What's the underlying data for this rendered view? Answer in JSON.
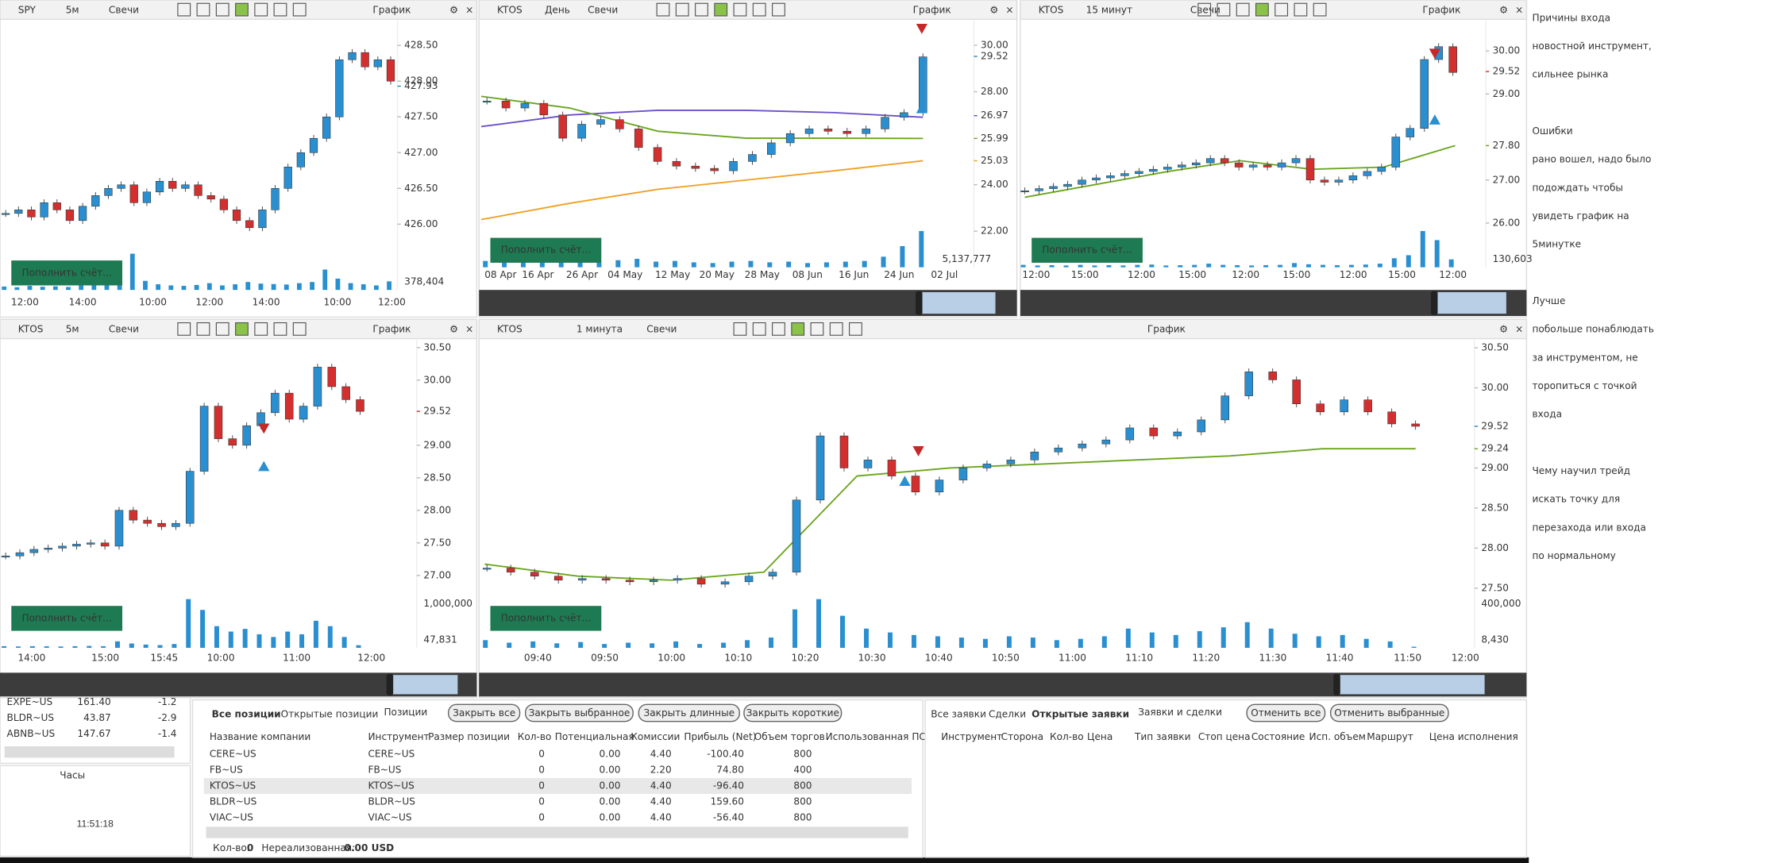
{
  "charts": [
    {
      "symbol": "SPY",
      "interval": "5м",
      "style": "Свечи",
      "title": "График",
      "button": "Пополнить счёт...",
      "ylim": [
        425.65,
        428.85
      ],
      "yticks": [
        {
          "value": 426,
          "label": "426.00"
        },
        {
          "value": 426.5,
          "label": "426.50"
        },
        {
          "value": 427,
          "label": "427.00"
        },
        {
          "value": 427.5,
          "label": "427.50"
        },
        {
          "value": 428,
          "label": "428.00"
        },
        {
          "value": 428.5,
          "label": "428.50"
        }
      ],
      "price_labels": [
        {
          "value": 427.93,
          "label": "427.93",
          "color": "#1e88c8"
        }
      ],
      "volume_labels": [
        "378,404"
      ],
      "xticks": [
        "12:00",
        "14:00",
        "10:00",
        "12:00",
        "14:00",
        "10:00",
        "12:00"
      ],
      "closes": [
        426.15,
        426.2,
        426.1,
        426.3,
        426.2,
        426.05,
        426.25,
        426.4,
        426.5,
        426.55,
        426.3,
        426.45,
        426.6,
        426.5,
        426.55,
        426.4,
        426.35,
        426.2,
        426.05,
        425.95,
        426.2,
        426.5,
        426.8,
        427,
        427.2,
        427.5,
        428.3,
        428.4,
        428.2,
        428.3,
        428
      ],
      "volumes": [
        150000,
        120000,
        180000,
        140000,
        160000,
        130000,
        200000,
        250000,
        300000,
        600000,
        1600000,
        400000,
        250000,
        200000,
        180000,
        220000,
        300000,
        200000,
        250000,
        350000,
        280000,
        260000,
        240000,
        300000,
        350000,
        900000,
        500000,
        300000,
        250000,
        200000,
        378404
      ]
    },
    {
      "symbol": "KTOS",
      "interval": "День",
      "style": "Свечи",
      "title": "График",
      "button": "Пополнить счёт...",
      "ylim": [
        22.2,
        31.07
      ],
      "yticks": [
        {
          "value": 22,
          "label": "22.00"
        },
        {
          "value": 24,
          "label": "24.00"
        },
        {
          "value": 28,
          "label": "28.00"
        },
        {
          "value": 30,
          "label": "30.00"
        }
      ],
      "price_labels": [
        {
          "value": 29.52,
          "label": "29.52",
          "color": "#1e88c8"
        },
        {
          "value": 26.97,
          "label": "26.97",
          "color": "#6a4fc8"
        },
        {
          "value": 25.99,
          "label": "25.99",
          "color": "#6aa51e"
        },
        {
          "value": 25.03,
          "label": "25.03",
          "color": "#f0a020"
        }
      ],
      "volume_labels": [
        "5,137,777"
      ],
      "xticks": [
        "08 Apr",
        "16 Apr",
        "26 Apr",
        "04 May",
        "12 May",
        "20 May",
        "28 May",
        "08 Jun",
        "16 Jun",
        "24 Jun",
        "02 Jul"
      ],
      "closes": [
        27.6,
        27.3,
        27.5,
        27,
        26,
        26.6,
        26.8,
        26.4,
        25.6,
        25,
        24.8,
        24.7,
        24.6,
        25,
        25.3,
        25.8,
        26.2,
        26.4,
        26.3,
        26.2,
        26.4,
        26.9,
        27.1,
        29.5
      ],
      "volumes": [
        900000,
        700000,
        1100000,
        800000,
        1300000,
        900000,
        700000,
        1000000,
        1200000,
        800000,
        900000,
        700000,
        600000,
        800000,
        900000,
        700000,
        800000,
        600000,
        700000,
        800000,
        900000,
        1500000,
        3000000,
        5137777
      ],
      "ma": [
        {
          "color": "#6a4fc8",
          "values": [
            26.5,
            27,
            27.2,
            27.2,
            27.1,
            26.9
          ]
        },
        {
          "color": "#6aa51e",
          "values": [
            27.8,
            27.3,
            26.3,
            26,
            26,
            25.99
          ]
        },
        {
          "color": "#f0a020",
          "values": [
            22.5,
            23.2,
            23.8,
            24.2,
            24.6,
            25.03
          ]
        }
      ]
    },
    {
      "symbol": "KTOS",
      "interval": "15 минут",
      "style": "Свечи",
      "title": "График",
      "button": "Пополнить счёт...",
      "ylim": [
        25.92,
        30.71
      ],
      "yticks": [
        {
          "value": 26,
          "label": "26.00"
        },
        {
          "value": 27,
          "label": "27.00"
        },
        {
          "value": 29,
          "label": "29.00"
        },
        {
          "value": 30,
          "label": "30.00"
        }
      ],
      "price_labels": [
        {
          "value": 29.52,
          "label": "29.52",
          "color": "#d32f2f"
        },
        {
          "value": 27.8,
          "label": "27.80",
          "color": "#6aa51e"
        }
      ],
      "volume_labels": [
        "130,603"
      ],
      "xticks": [
        "12:00",
        "15:00",
        "12:00",
        "15:00",
        "12:00",
        "15:00",
        "12:00",
        "15:00",
        "12:00"
      ],
      "closes": [
        26.75,
        26.8,
        26.85,
        26.9,
        27,
        27.05,
        27.1,
        27.15,
        27.2,
        27.25,
        27.3,
        27.35,
        27.4,
        27.5,
        27.4,
        27.3,
        27.35,
        27.3,
        27.4,
        27.5,
        27,
        26.95,
        27,
        27.1,
        27.2,
        27.3,
        28,
        28.2,
        29.8,
        30.1,
        29.5
      ],
      "volumes": [
        40000,
        30000,
        35000,
        30000,
        40000,
        30000,
        35000,
        30000,
        40000,
        45000,
        30000,
        35000,
        40000,
        60000,
        40000,
        35000,
        30000,
        35000,
        40000,
        70000,
        50000,
        40000,
        35000,
        40000,
        45000,
        60000,
        150000,
        200000,
        600000,
        450000,
        130603
      ],
      "ma": [
        {
          "color": "#6aa51e",
          "values": [
            26.6,
            26.9,
            27.2,
            27.45,
            27.25,
            27.3,
            27.8
          ]
        }
      ]
    },
    {
      "symbol": "KTOS",
      "interval": "5м",
      "style": "Свечи",
      "title": "График",
      "button": "Пополнить счёт...",
      "ylim": [
        26.88,
        30.62
      ],
      "yticks": [
        {
          "value": 27,
          "label": "27.00"
        },
        {
          "value": 27.5,
          "label": "27.50"
        },
        {
          "value": 28,
          "label": "28.00"
        },
        {
          "value": 28.5,
          "label": "28.50"
        },
        {
          "value": 29,
          "label": "29.00"
        },
        {
          "value": 30,
          "label": "30.00"
        },
        {
          "value": 30.5,
          "label": "30.50"
        }
      ],
      "price_labels": [
        {
          "value": 29.52,
          "label": "29.52",
          "color": "#d32f2f"
        }
      ],
      "volume_labels": [
        "1,000,000",
        "47,831"
      ],
      "xticks": [
        "14:00",
        "15:00",
        "15:45",
        "10:00",
        "11:00",
        "12:00"
      ],
      "closes": [
        27.3,
        27.35,
        27.4,
        27.42,
        27.45,
        27.48,
        27.5,
        27.45,
        28,
        27.85,
        27.8,
        27.75,
        27.8,
        28.6,
        29.6,
        29.1,
        29,
        29.3,
        29.5,
        29.8,
        29.4,
        29.6,
        30.2,
        29.9,
        29.7,
        29.52
      ],
      "volumes": [
        30000,
        25000,
        30000,
        28000,
        25000,
        30000,
        35000,
        30000,
        120000,
        80000,
        60000,
        50000,
        70000,
        900000,
        700000,
        400000,
        300000,
        350000,
        250000,
        200000,
        300000,
        250000,
        500000,
        400000,
        200000,
        47831
      ]
    },
    {
      "symbol": "KTOS",
      "interval": "1 минута",
      "style": "Свечи",
      "title": "График",
      "button": "Пополнить счёт...",
      "ylim": [
        27.42,
        30.6
      ],
      "yticks": [
        {
          "value": 27.5,
          "label": "27.50"
        },
        {
          "value": 28,
          "label": "28.00"
        },
        {
          "value": 28.5,
          "label": "28.50"
        },
        {
          "value": 29,
          "label": "29.00"
        },
        {
          "value": 30,
          "label": "30.00"
        },
        {
          "value": 30.5,
          "label": "30.50"
        }
      ],
      "price_labels": [
        {
          "value": 29.52,
          "label": "29.52",
          "color": "#1e88c8"
        },
        {
          "value": 29.24,
          "label": "29.24",
          "color": "#6aa51e"
        }
      ],
      "volume_labels": [
        "400,000",
        "8,430"
      ],
      "xticks": [
        "09:40",
        "09:50",
        "10:00",
        "10:10",
        "10:20",
        "10:30",
        "10:40",
        "10:50",
        "11:00",
        "11:10",
        "11:20",
        "11:30",
        "11:40",
        "11:50",
        "12:00"
      ],
      "closes": [
        27.75,
        27.7,
        27.65,
        27.6,
        27.62,
        27.6,
        27.58,
        27.6,
        27.62,
        27.55,
        27.58,
        27.65,
        27.7,
        28.6,
        29.4,
        29,
        29.1,
        28.9,
        28.7,
        28.85,
        29,
        29.05,
        29.1,
        29.2,
        29.25,
        29.3,
        29.35,
        29.5,
        29.4,
        29.45,
        29.6,
        29.9,
        30.2,
        30.1,
        29.8,
        29.7,
        29.85,
        29.7,
        29.55,
        29.52
      ],
      "volumes": [
        60000,
        40000,
        50000,
        35000,
        45000,
        30000,
        40000,
        35000,
        50000,
        30000,
        40000,
        60000,
        80000,
        300000,
        380000,
        250000,
        150000,
        120000,
        100000,
        90000,
        80000,
        70000,
        90000,
        80000,
        60000,
        70000,
        90000,
        150000,
        120000,
        100000,
        130000,
        160000,
        200000,
        150000,
        110000,
        90000,
        100000,
        70000,
        50000,
        8430
      ],
      "ma": [
        {
          "color": "#6aa51e",
          "values": [
            27.8,
            27.65,
            27.6,
            27.7,
            28.9,
            29,
            29.05,
            29.1,
            29.15,
            29.24,
            29.24
          ]
        }
      ]
    }
  ],
  "notes": [
    [
      "Причины входа",
      "новостной инструмент,",
      "сильнее рынка"
    ],
    [
      "Ошибки",
      "рано вошел, надо было",
      "подождать чтобы",
      "увидеть график на",
      "5минутке"
    ],
    [
      "Лучше",
      "побольше понаблюдать",
      "за инструментом, не",
      "торопиться с точкой",
      "входа"
    ],
    [
      "Чему научил трейд",
      "искать точку для",
      "перезахода или входа",
      "по нормальному"
    ]
  ],
  "watchlist": {
    "rows": [
      [
        "EXPE~US",
        "161.40",
        "-1.2"
      ],
      [
        "BLDR~US",
        "43.87",
        "-2.9"
      ],
      [
        "ABNB~US",
        "147.67",
        "-1.4"
      ]
    ]
  },
  "clock": {
    "title": "Часы",
    "time": "11:51:18"
  },
  "positions": {
    "tabs": [
      "Все позиции",
      "Открытые позиции"
    ],
    "title": "Позиции",
    "buttons": [
      "Закрыть все",
      "Закрыть выбранное",
      "Закрыть длинные",
      "Закрыть короткие"
    ],
    "columns": [
      "Название компании",
      "Инструмент",
      "Размер позиции",
      "Кол-во",
      "Потенциальная",
      "Комиссии",
      "Прибыль (Net)",
      "Объем торгов",
      "Использованная ПС"
    ],
    "rows": [
      [
        "CERE~US",
        "CERE~US",
        "0",
        "0.00",
        "4.40",
        "-100.40",
        "800"
      ],
      [
        "FB~US",
        "FB~US",
        "0",
        "0.00",
        "2.20",
        "74.80",
        "400"
      ],
      [
        "KTOS~US",
        "KTOS~US",
        "0",
        "0.00",
        "4.40",
        "-96.40",
        "800"
      ],
      [
        "BLDR~US",
        "BLDR~US",
        "0",
        "0.00",
        "4.40",
        "159.60",
        "800"
      ],
      [
        "VIAC~US",
        "VIAC~US",
        "0",
        "0.00",
        "4.40",
        "-56.40",
        "800"
      ]
    ],
    "footer": {
      "qty_label": "Кол-во:",
      "qty": "0",
      "unrealized_label": "Нереализованная:",
      "unrealized": "0.00 USD"
    }
  },
  "orders": {
    "tabs": [
      "Все заявки",
      "Сделки",
      "Открытые заявки"
    ],
    "title": "Заявки и сделки",
    "buttons": [
      "Отменить все",
      "Отменить выбранные"
    ],
    "columns": [
      "Инструмент",
      "Сторона",
      "Кол-во",
      "Цена",
      "Тип заявки",
      "Стоп цена",
      "Состояние",
      "Исп. объем",
      "Маршрут",
      "Цена исполнения"
    ]
  }
}
